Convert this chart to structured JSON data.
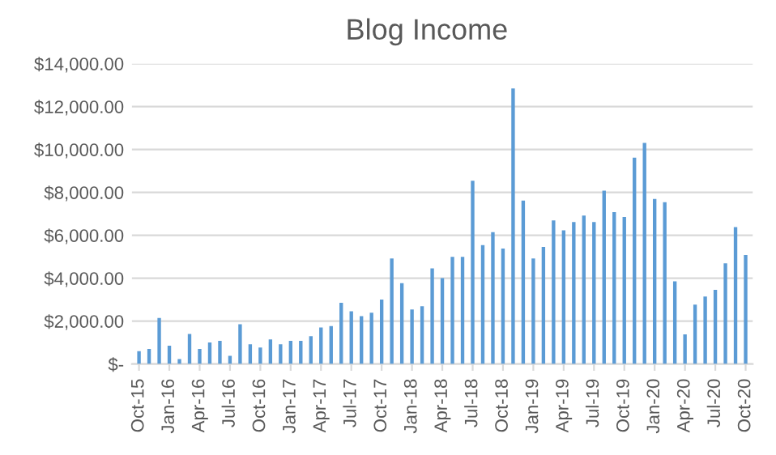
{
  "chart_data": {
    "type": "bar",
    "title": "Blog Income",
    "color": "#5b9bd5",
    "grid": "y",
    "categories": [
      "Oct-15",
      null,
      null,
      "Jan-16",
      null,
      null,
      "Apr-16",
      null,
      null,
      "Jul-16",
      null,
      null,
      "Oct-16",
      null,
      null,
      "Jan-17",
      null,
      null,
      "Apr-17",
      null,
      null,
      "Jul-17",
      null,
      null,
      "Oct-17",
      null,
      null,
      "Jan-18",
      null,
      null,
      "Apr-18",
      null,
      null,
      "Jul-18",
      null,
      null,
      "Oct-18",
      null,
      null,
      "Jan-19",
      null,
      null,
      "Apr-19",
      null,
      null,
      "Jul-19",
      null,
      null,
      "Oct-19",
      null,
      null,
      "Jan-20",
      null,
      null,
      "Apr-20",
      null,
      null,
      "Jul-20",
      null,
      null,
      "Oct-20"
    ],
    "values": [
      600,
      700,
      2150,
      850,
      230,
      1400,
      700,
      1000,
      1080,
      380,
      1850,
      920,
      770,
      1150,
      920,
      1080,
      1080,
      1300,
      1700,
      1770,
      2850,
      2460,
      2230,
      2390,
      3000,
      4920,
      3770,
      2540,
      2690,
      4460,
      4000,
      5000,
      5000,
      8540,
      5540,
      6150,
      5380,
      12850,
      7620,
      4920,
      5460,
      6690,
      6230,
      6620,
      6920,
      6620,
      8080,
      7080,
      6850,
      9620,
      10310,
      7690,
      7540,
      3850,
      1380,
      2770,
      3150,
      3460,
      4690,
      6380,
      5080
    ],
    "ylim": [
      0,
      14000
    ],
    "yticks": [
      {
        "value": 0,
        "label": "$-"
      },
      {
        "value": 2000,
        "label": "$2,000.00"
      },
      {
        "value": 4000,
        "label": "$4,000.00"
      },
      {
        "value": 6000,
        "label": "$6,000.00"
      },
      {
        "value": 8000,
        "label": "$8,000.00"
      },
      {
        "value": 10000,
        "label": "$10,000.00"
      },
      {
        "value": 12000,
        "label": "$12,000.00"
      },
      {
        "value": 14000,
        "label": "$14,000.00"
      }
    ]
  }
}
